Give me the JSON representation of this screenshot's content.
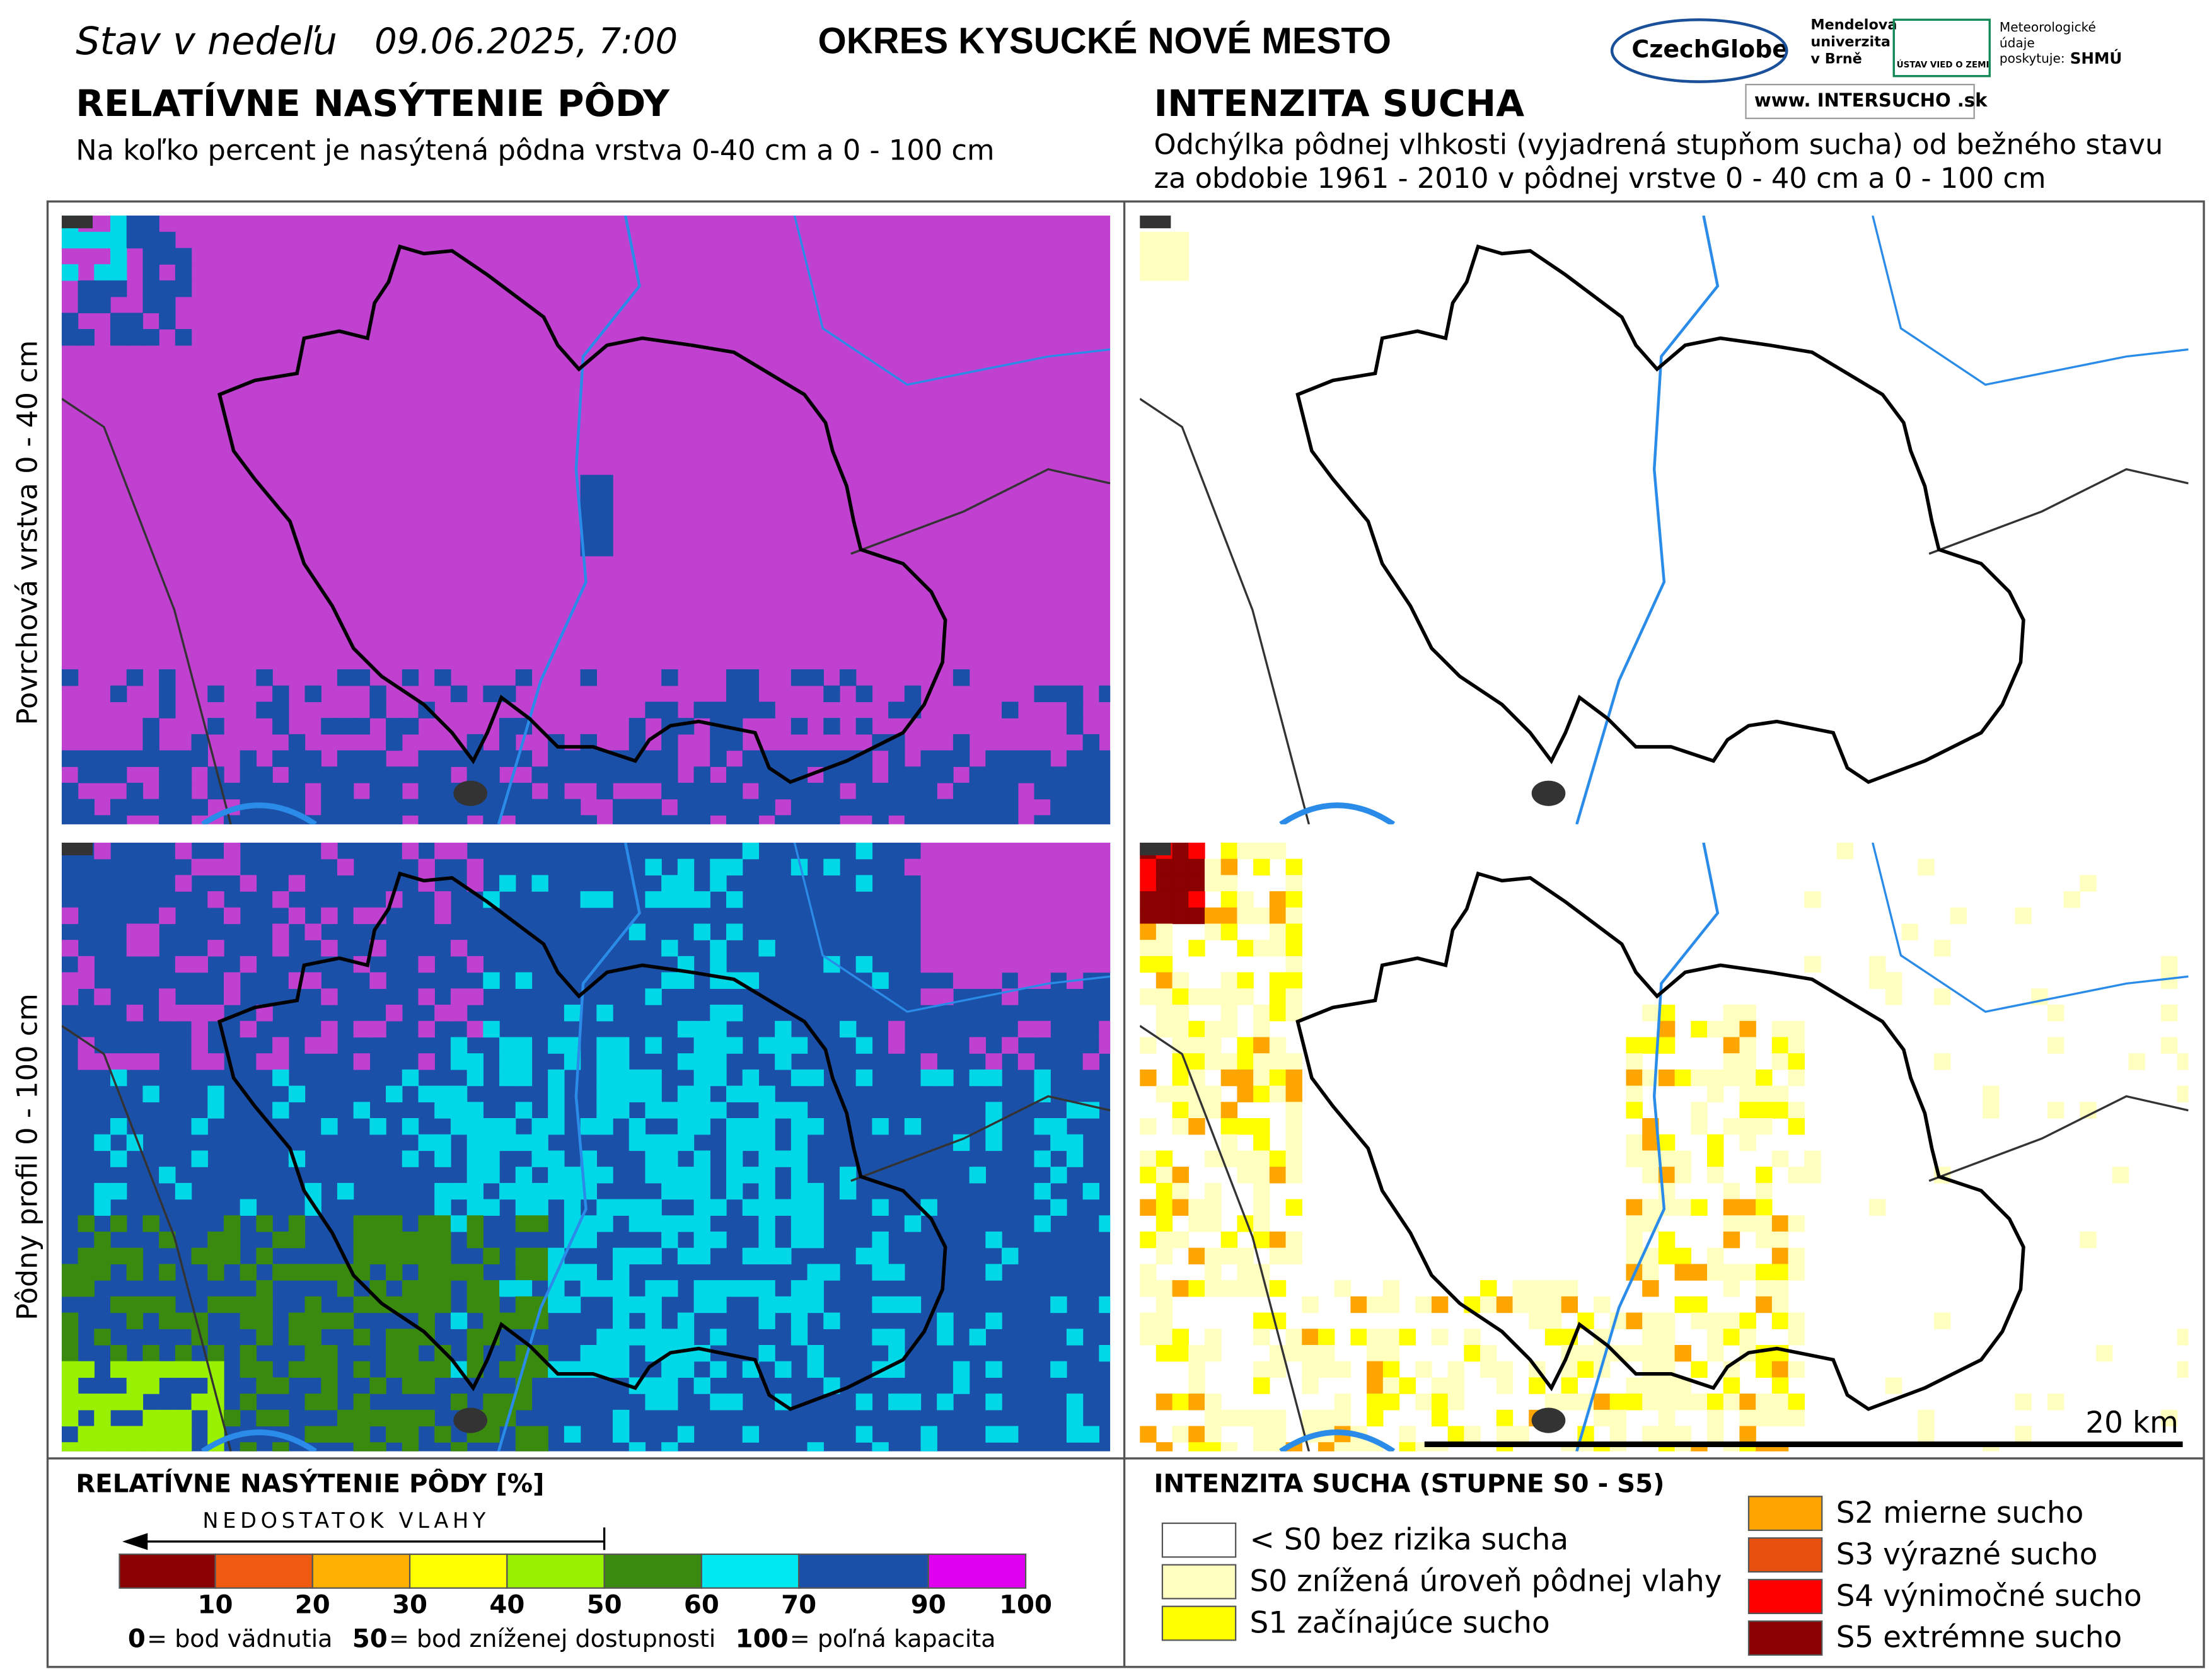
{
  "header": {
    "date_prefix": "Stav v nedeľu",
    "date": "09.06.2025, 7:00",
    "district": "OKRES  KYSUCKÉ NOVÉ MESTO"
  },
  "logos": {
    "czechglobe": "CzechGlobe",
    "mendel": [
      "Mendelova",
      "univerzita",
      "v Brně"
    ],
    "uvz": "ÚSTAV VIED O ZEMI",
    "meteo": [
      "Meteorologické",
      "údaje",
      "poskytuje:"
    ],
    "shmu": "SHMÚ",
    "web": "www. INTERSUCHO .sk"
  },
  "left_panel": {
    "title": "RELATÍVNE NASÝTENIE PÔDY",
    "subtitle": "Na koľko percent je nasýtená pôdna vrstva 0-40 cm a 0 - 100 cm"
  },
  "right_panel": {
    "title": "INTENZITA SUCHA",
    "subtitle_lines": [
      "Odchýlka pôdnej vlhkosti (vyjadrená stupňom sucha) od bežného stavu",
      "za obdobie 1961 - 2010 v pôdnej vrstve 0 - 40 cm a 0 - 100 cm"
    ]
  },
  "row_labels": [
    "Povrchová vrstva 0 - 40 cm",
    "Pôdny profil 0 - 100 cm"
  ],
  "scale_bar": "20 km",
  "saturation_legend": {
    "title": "RELATÍVNE NASÝTENIE PÔDY [%]",
    "arrow": "NEDOSTATOK VLAHY",
    "classes": [
      {
        "color": "#8b0000",
        "label": "10"
      },
      {
        "color": "#f05a10",
        "label": "20"
      },
      {
        "color": "#ffb000",
        "label": "30"
      },
      {
        "color": "#ffff00",
        "label": "40"
      },
      {
        "color": "#99f000",
        "label": "50"
      },
      {
        "color": "#3a8a10",
        "label": "60"
      },
      {
        "color": "#00e8f0",
        "label": "70"
      },
      {
        "color": "#1a50a8",
        "label": "90"
      },
      {
        "color": "#e000f0",
        "label": "100"
      }
    ],
    "footnote": [
      [
        "0",
        " = bod vädnutia"
      ],
      [
        "50",
        " = bod zníženej dostupnosti"
      ],
      [
        "100",
        " = poľná kapacita"
      ]
    ]
  },
  "drought_legend": {
    "title": "INTENZITA SUCHA (STUPNE S0 - S5)",
    "items": [
      {
        "color": "#ffffff",
        "label": "< S0 bez rizika sucha"
      },
      {
        "color": "#ffffc0",
        "label": "S0 znížená úroveň pôdnej vlahy"
      },
      {
        "color": "#ffff00",
        "label": "S1 začínajúce sucho"
      },
      {
        "color": "#ffa500",
        "label": "S2 mierne sucho"
      },
      {
        "color": "#e85010",
        "label": "S3 výrazné sucho"
      },
      {
        "color": "#ff0000",
        "label": "S4 výnimočné sucho"
      },
      {
        "color": "#8b0000",
        "label": "S5 extrémne sucho"
      }
    ]
  }
}
